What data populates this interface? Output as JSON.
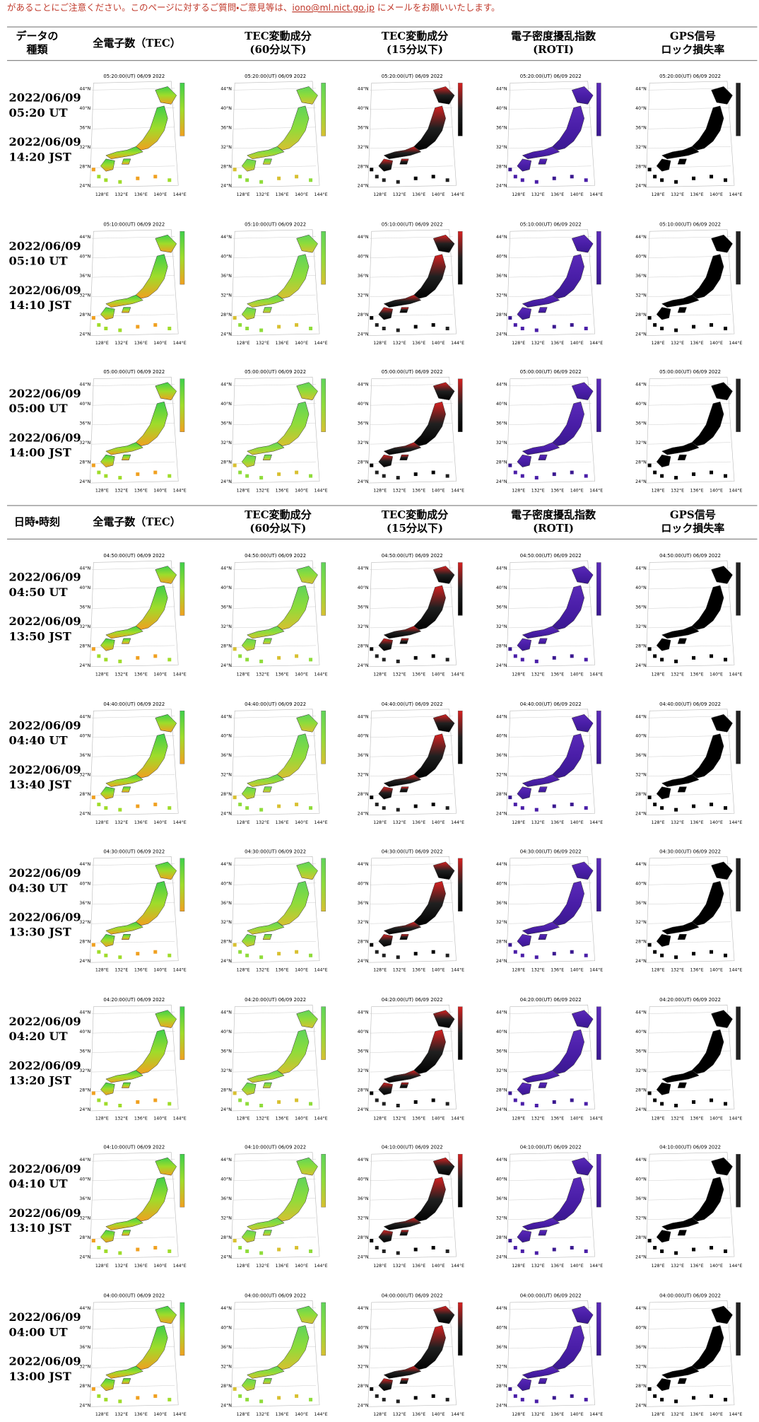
{
  "notice": {
    "before": "があることにご注意ください。このページに対するご質問・ご意見等は、",
    "email": "iono@ml.nict.go.jp",
    "after": " にメールをお願いいたします。"
  },
  "map_axes": {
    "lat": [
      "44°N",
      "40°N",
      "36°N",
      "32°N",
      "28°N",
      "24°N"
    ],
    "lon": [
      "128°E",
      "132°E",
      "136°E",
      "140°E",
      "144°E"
    ]
  },
  "sections": [
    {
      "header": [
        [
          "データの",
          "種類"
        ],
        [
          "全電子数（TEC）"
        ],
        [
          "TEC変動成分",
          "(60分以下)"
        ],
        [
          "TEC変動成分",
          "(15分以下)"
        ],
        [
          "電子密度擾乱指数",
          "(ROTI)"
        ],
        [
          "GPS信号",
          "ロック損失率"
        ]
      ],
      "rows": [
        {
          "ut_date": "2022/06/09",
          "ut_time": "05:20 UT",
          "jst_date": "2022/06/09",
          "jst_time": "14:20 JST",
          "map_title": "05:20:00(UT) 06/09 2022"
        },
        {
          "ut_date": "2022/06/09",
          "ut_time": "05:10 UT",
          "jst_date": "2022/06/09",
          "jst_time": "14:10 JST",
          "map_title": "05:10:00(UT) 06/09 2022"
        },
        {
          "ut_date": "2022/06/09",
          "ut_time": "05:00 UT",
          "jst_date": "2022/06/09",
          "jst_time": "14:00 JST",
          "map_title": "05:00:00(UT) 06/09 2022"
        }
      ]
    },
    {
      "header": [
        [
          "日時・時刻"
        ],
        [
          "全電子数（TEC）"
        ],
        [
          "TEC変動成分",
          "(60分以下)"
        ],
        [
          "TEC変動成分",
          "(15分以下)"
        ],
        [
          "電子密度擾乱指数",
          "(ROTI)"
        ],
        [
          "GPS信号",
          "ロック損失率"
        ]
      ],
      "rows": [
        {
          "ut_date": "2022/06/09",
          "ut_time": "04:50 UT",
          "jst_date": "2022/06/09",
          "jst_time": "13:50 JST",
          "map_title": "04:50:00(UT) 06/09 2022"
        },
        {
          "ut_date": "2022/06/09",
          "ut_time": "04:40 UT",
          "jst_date": "2022/06/09",
          "jst_time": "13:40 JST",
          "map_title": "04:40:00(UT) 06/09 2022"
        },
        {
          "ut_date": "2022/06/09",
          "ut_time": "04:30 UT",
          "jst_date": "2022/06/09",
          "jst_time": "13:30 JST",
          "map_title": "04:30:00(UT) 06/09 2022"
        },
        {
          "ut_date": "2022/06/09",
          "ut_time": "04:20 UT",
          "jst_date": "2022/06/09",
          "jst_time": "13:20 JST",
          "map_title": "04:20:00(UT) 06/09 2022"
        },
        {
          "ut_date": "2022/06/09",
          "ut_time": "04:10 UT",
          "jst_date": "2022/06/09",
          "jst_time": "13:10 JST",
          "map_title": "04:10:00(UT) 06/09 2022"
        },
        {
          "ut_date": "2022/06/09",
          "ut_time": "04:00 UT",
          "jst_date": "2022/06/09",
          "jst_time": "13:00 JST",
          "map_title": "04:00:00(UT) 06/09 2022"
        }
      ]
    }
  ]
}
